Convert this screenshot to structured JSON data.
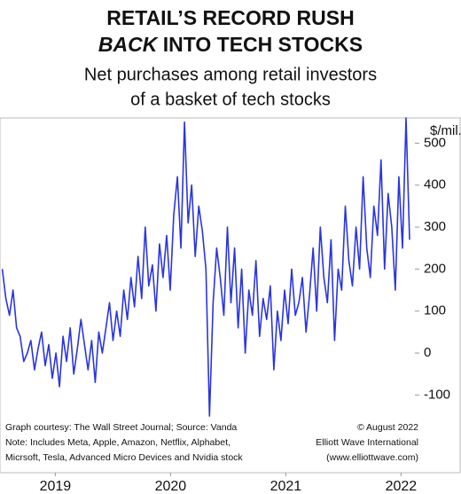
{
  "chart_data": {
    "type": "line",
    "title": "RETAIL’S RECORD RUSH",
    "title_emphasis": "BACK",
    "title_rest": " INTO TECH STOCKS",
    "subtitle": [
      "Net purchases among retail investors",
      "of a basket of tech stocks"
    ],
    "y_unit": "$/mil.",
    "notes_left": [
      "Graph courtesy: The Wall Street Journal; Source: Vanda",
      "Note: Includes Meta, Apple, Amazon, Netflix, Alphabet,",
      "Micrsoft, Tesla, Advanced Micro Devices and Nvidia stock"
    ],
    "notes_right": [
      "© August 2022",
      "Elliott Wave International",
      "(www.elliottwave.com)"
    ],
    "color": "#2a35e0",
    "x": [
      2019.04,
      2019.071,
      2019.102,
      2019.133,
      2019.164,
      2019.195,
      2019.226,
      2019.257,
      2019.288,
      2019.319,
      2019.35,
      2019.381,
      2019.412,
      2019.443,
      2019.474,
      2019.505,
      2019.536,
      2019.567,
      2019.598,
      2019.629,
      2019.66,
      2019.691,
      2019.722,
      2019.753,
      2019.784,
      2019.815,
      2019.846,
      2019.877,
      2019.908,
      2019.939,
      2019.97,
      2020.001,
      2020.032,
      2020.063,
      2020.094,
      2020.125,
      2020.156,
      2020.187,
      2020.218,
      2020.249,
      2020.28,
      2020.311,
      2020.342,
      2020.373,
      2020.404,
      2020.435,
      2020.466,
      2020.497,
      2020.528,
      2020.559,
      2020.59,
      2020.621,
      2020.652,
      2020.683,
      2020.714,
      2020.745,
      2020.776,
      2020.807,
      2020.838,
      2020.869,
      2020.9,
      2020.931,
      2020.962,
      2020.993,
      2021.024,
      2021.055,
      2021.086,
      2021.117,
      2021.148,
      2021.179,
      2021.21,
      2021.241,
      2021.272,
      2021.303,
      2021.334,
      2021.365,
      2021.396,
      2021.427,
      2021.458,
      2021.489,
      2021.52,
      2021.551,
      2021.582,
      2021.613,
      2021.644,
      2021.675,
      2021.706,
      2021.737,
      2021.768,
      2021.799,
      2021.83,
      2021.861,
      2021.892,
      2021.923,
      2021.954,
      2021.985,
      2022.016,
      2022.047,
      2022.078,
      2022.109,
      2022.14,
      2022.171,
      2022.202,
      2022.233,
      2022.264,
      2022.295,
      2022.326,
      2022.357,
      2022.388,
      2022.419,
      2022.45,
      2022.481,
      2022.512,
      2022.543,
      2022.574
    ],
    "values": [
      200,
      130,
      90,
      150,
      60,
      40,
      -20,
      0,
      30,
      -40,
      10,
      50,
      -30,
      20,
      -60,
      0,
      -80,
      40,
      -20,
      60,
      -50,
      10,
      80,
      20,
      -40,
      30,
      -70,
      50,
      0,
      60,
      120,
      30,
      100,
      40,
      150,
      80,
      180,
      110,
      230,
      130,
      300,
      160,
      210,
      100,
      260,
      180,
      280,
      150,
      330,
      420,
      250,
      550,
      310,
      400,
      230,
      350,
      290,
      200,
      -150,
      120,
      250,
      180,
      90,
      300,
      120,
      250,
      60,
      200,
      0,
      150,
      90,
      220,
      40,
      130,
      80,
      160,
      -40,
      100,
      30,
      150,
      70,
      200,
      90,
      120,
      180,
      50,
      140,
      250,
      100,
      300,
      180,
      120,
      270,
      30,
      200,
      150,
      350,
      220,
      160,
      300,
      200,
      420,
      250,
      180,
      350,
      280,
      460,
      200,
      380,
      300,
      150,
      420,
      250,
      560,
      270
    ],
    "xlim": [
      2019.02,
      2022.62
    ],
    "xticks": [
      {
        "value": 2019.5,
        "label": "2019"
      },
      {
        "value": 2020.5,
        "label": "2020"
      },
      {
        "value": 2021.5,
        "label": "2021"
      },
      {
        "value": 2022.5,
        "label": "2022"
      }
    ],
    "ylim": [
      -285,
      560
    ],
    "yticks": [
      500,
      400,
      300,
      200,
      100,
      0,
      -100
    ]
  }
}
